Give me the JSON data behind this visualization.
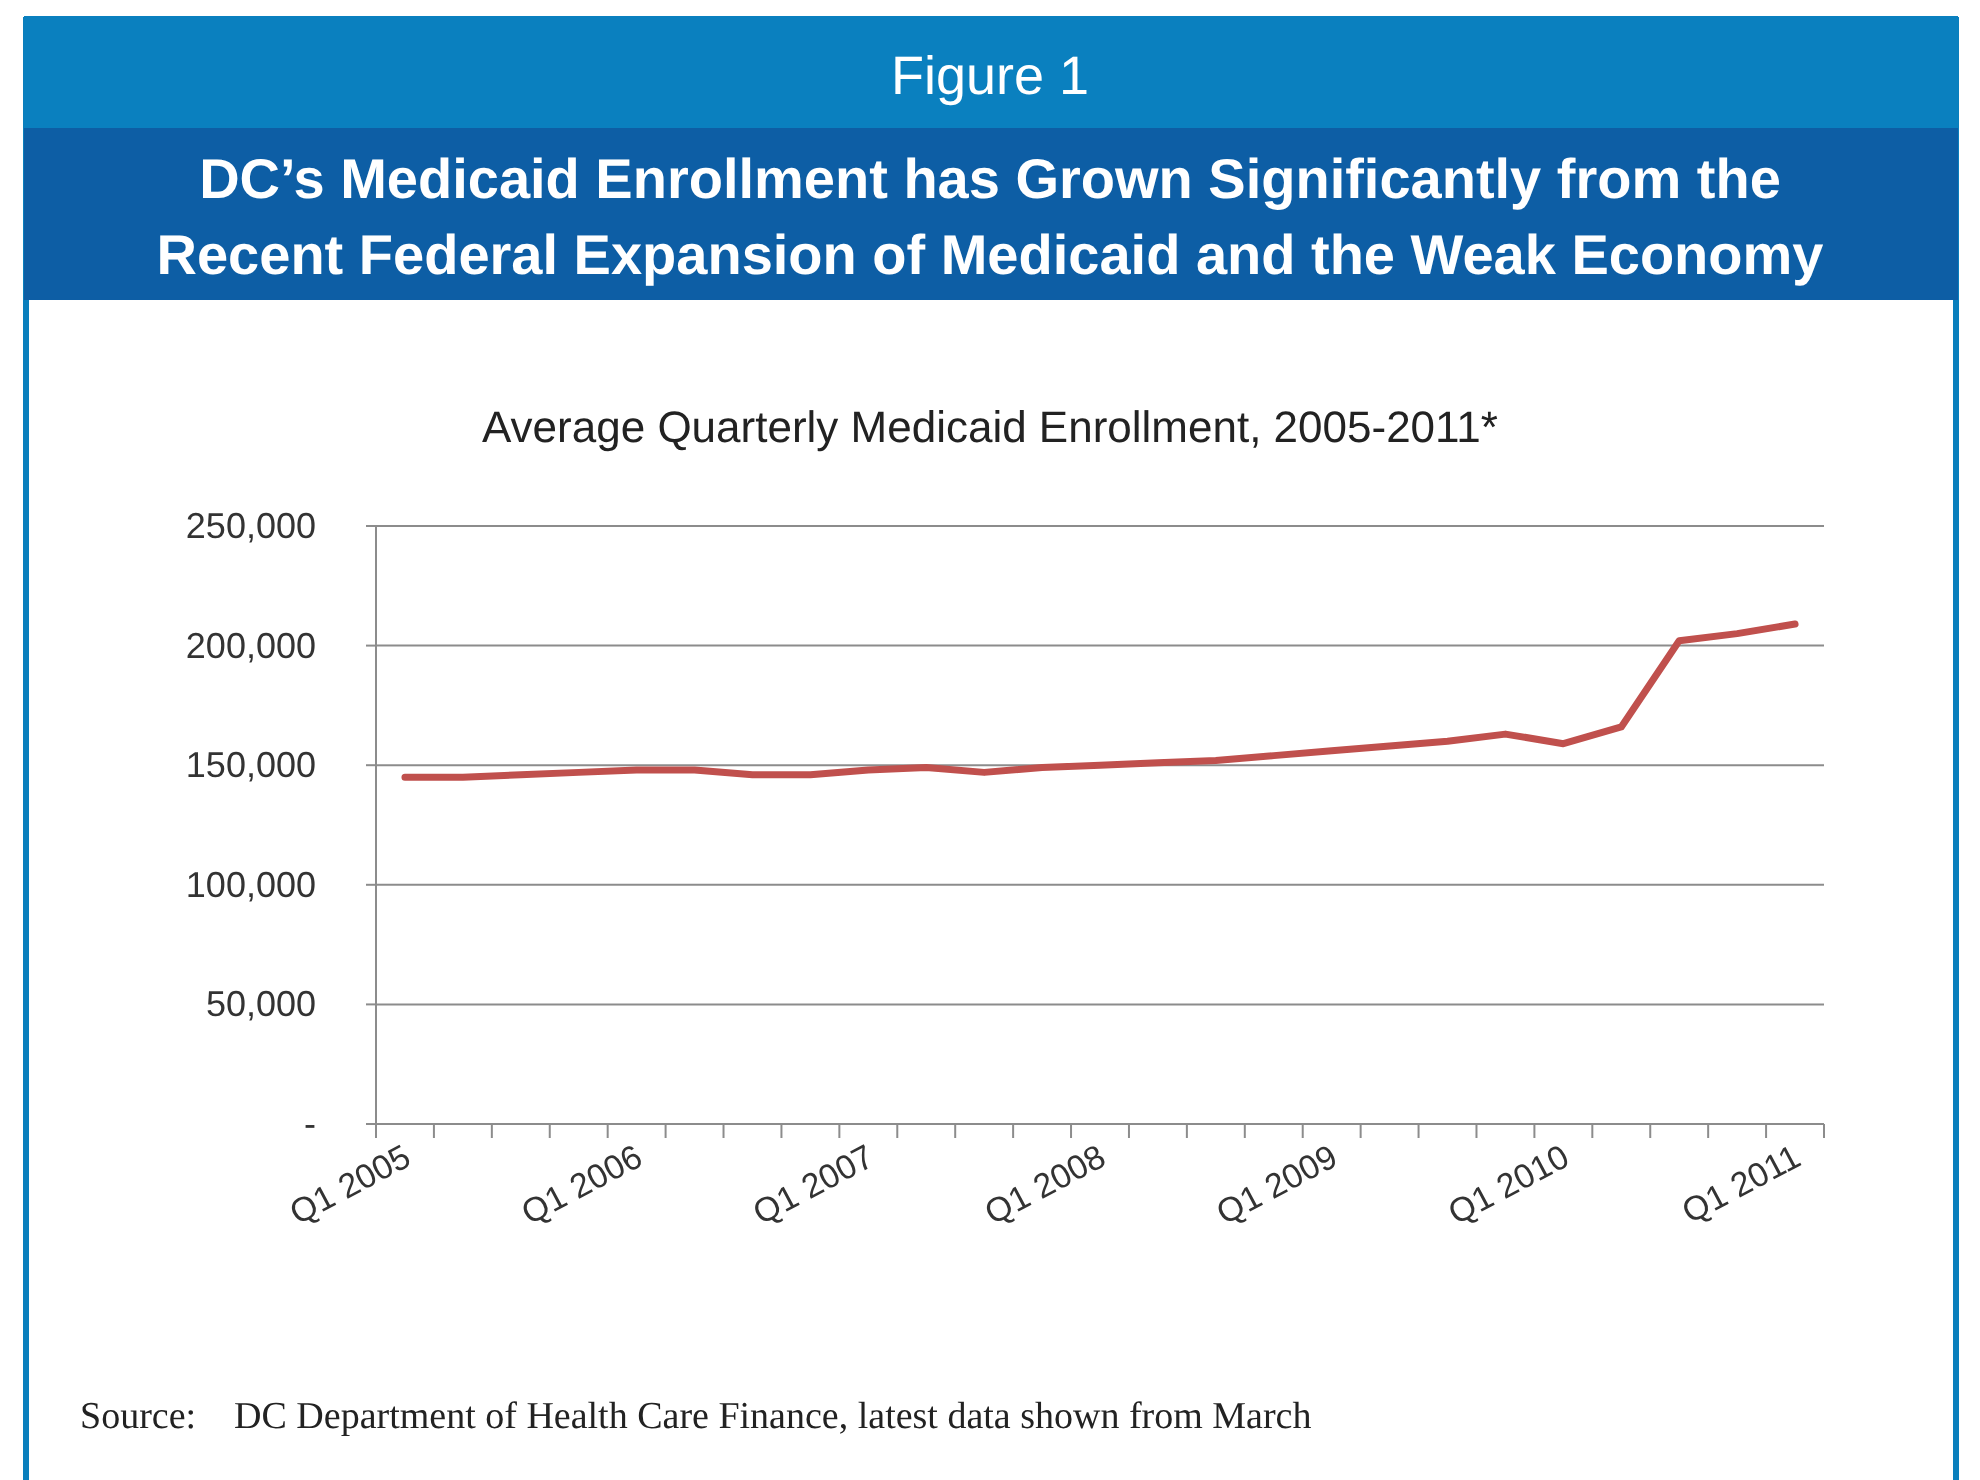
{
  "chart_data": {
    "type": "line",
    "title": "DC’s Medicaid Enrollment has Grown Significantly from the Recent Federal Expansion of Medicaid and the Weak Economy",
    "subtitle": "Average Quarterly Medicaid Enrollment, 2005-2011*",
    "annotations": [
      "Figure 1",
      "Source:    DC Department of Health Care Finance, latest data shown from March"
    ],
    "categories": [
      "Q1 2005",
      null,
      null,
      null,
      "Q1 2006",
      null,
      null,
      null,
      "Q1 2007",
      null,
      null,
      null,
      "Q1 2008",
      null,
      null,
      null,
      "Q1 2009",
      null,
      null,
      null,
      "Q1 2010",
      null,
      null,
      null,
      "Q1 2011"
    ],
    "series": [
      {
        "color": "#c0504d",
        "values": [
          145000,
          145000,
          146000,
          147000,
          148000,
          148000,
          146000,
          146000,
          148000,
          149000,
          147000,
          149000,
          150000,
          151000,
          152000,
          154000,
          156000,
          158000,
          160000,
          163000,
          159000,
          166000,
          202000,
          205000,
          209000
        ]
      }
    ],
    "ylim": [
      0,
      250000
    ],
    "yticks": [
      {
        "value": 0,
        "label": "-"
      },
      {
        "value": 50000,
        "label": "50,000"
      },
      {
        "value": 100000,
        "label": "100,000"
      },
      {
        "value": 150000,
        "label": "150,000"
      },
      {
        "value": 200000,
        "label": "200,000"
      },
      {
        "value": 250000,
        "label": "250,000"
      }
    ],
    "grid": "y",
    "marker": "none",
    "line_style": "solid"
  }
}
